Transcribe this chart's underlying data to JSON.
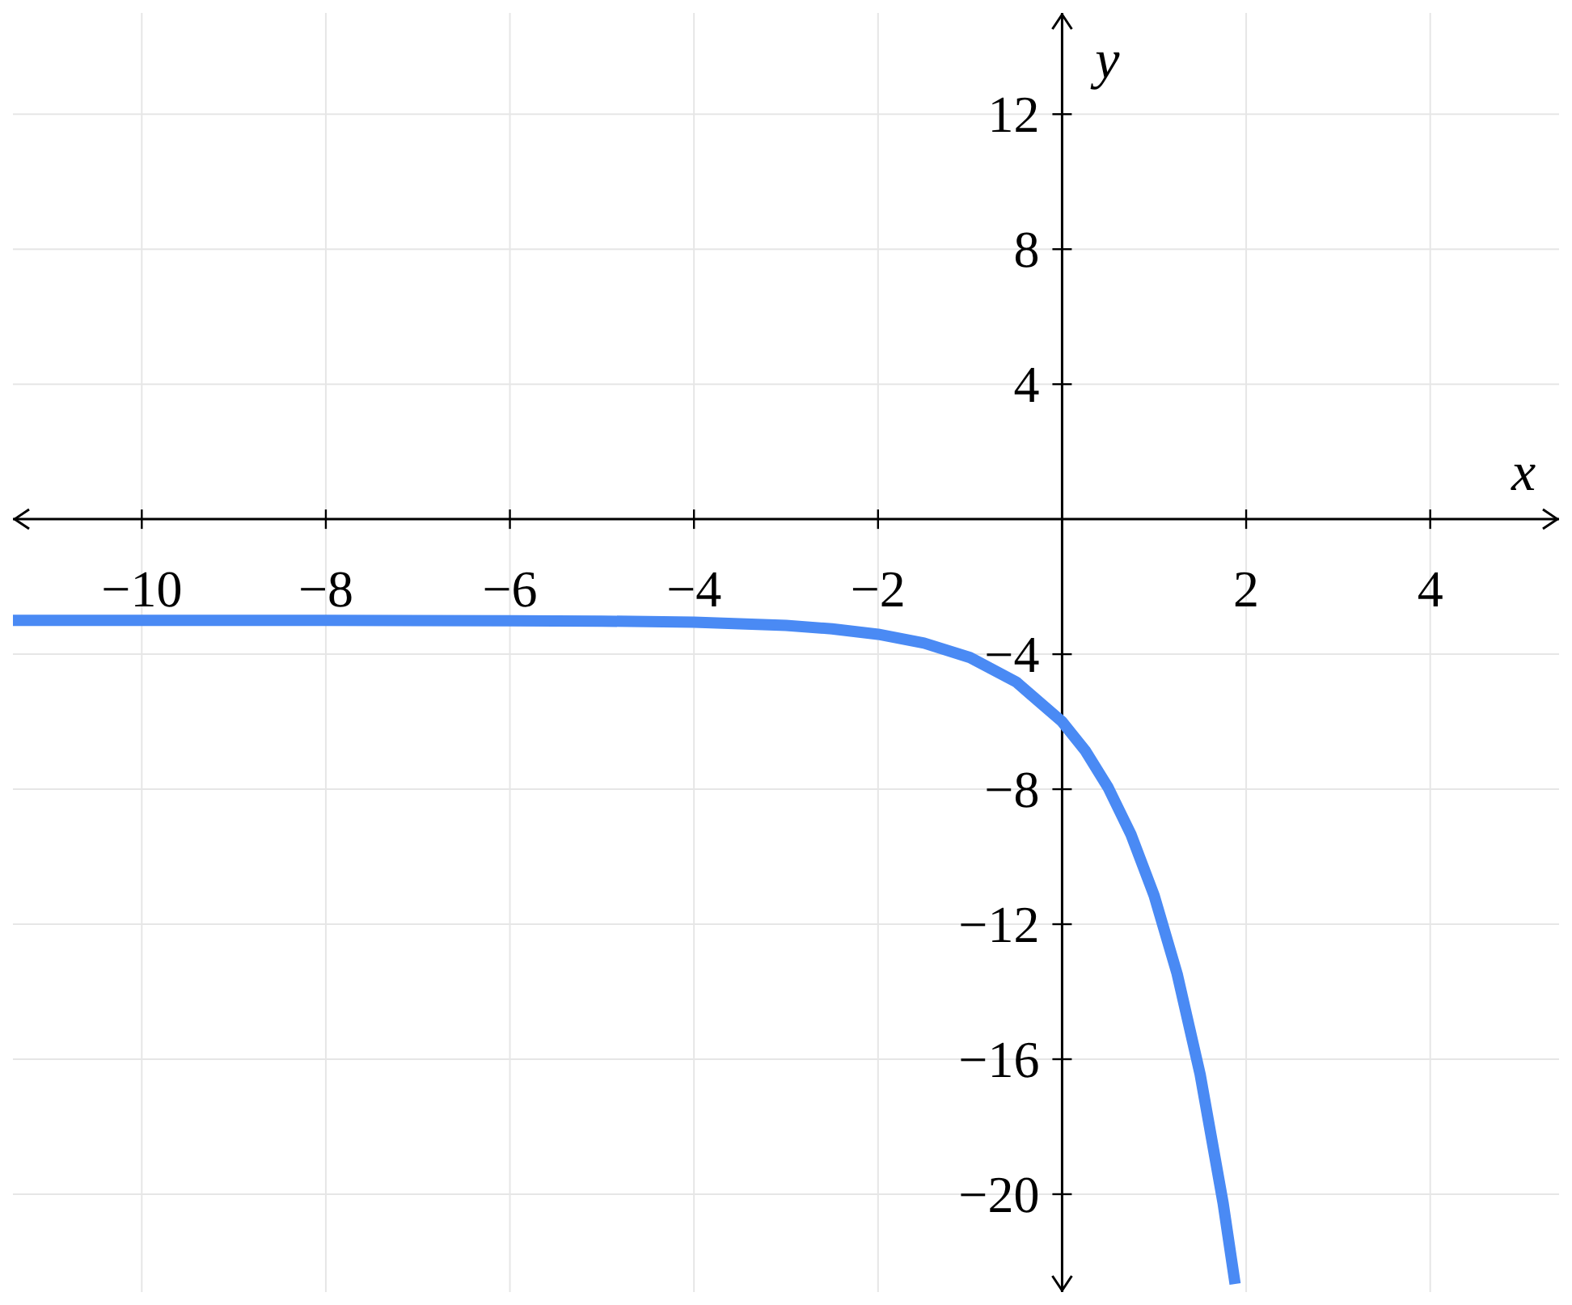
{
  "chart_data": {
    "type": "line",
    "xlabel": "x",
    "ylabel": "y",
    "xlim": [
      -11.4,
      5.4
    ],
    "ylim": [
      -22.9,
      15
    ],
    "xticks": [
      {
        "value": -10,
        "label": "−10"
      },
      {
        "value": -8,
        "label": "−8"
      },
      {
        "value": -6,
        "label": "−6"
      },
      {
        "value": -4,
        "label": "−4"
      },
      {
        "value": -2,
        "label": "−2"
      },
      2,
      4
    ],
    "yticks": [
      {
        "value": -20,
        "label": "−20"
      },
      {
        "value": -16,
        "label": "−16"
      },
      {
        "value": -12,
        "label": "−12"
      },
      {
        "value": -8,
        "label": "−8"
      },
      {
        "value": -4,
        "label": "−4"
      },
      4,
      8,
      12
    ],
    "x": [
      -11.4,
      -10,
      -8,
      -6,
      -5,
      -4,
      -3,
      -2.5,
      -2,
      -1.5,
      -1,
      -0.5,
      0,
      0.25,
      0.5,
      0.75,
      1,
      1.25,
      1.5,
      1.75,
      1.88
    ],
    "series": [
      {
        "color": "#4a8af4",
        "values": [
          -3,
          -3,
          -3,
          -3.01,
          -3.02,
          -3.05,
          -3.15,
          -3.25,
          -3.41,
          -3.67,
          -4.1,
          -4.82,
          -6,
          -6.85,
          -7.95,
          -9.35,
          -11.15,
          -13.47,
          -16.45,
          -20.27,
          -22.66
        ]
      }
    ],
    "grid": true,
    "legend": false,
    "marker": "none",
    "line_style": "solid"
  }
}
